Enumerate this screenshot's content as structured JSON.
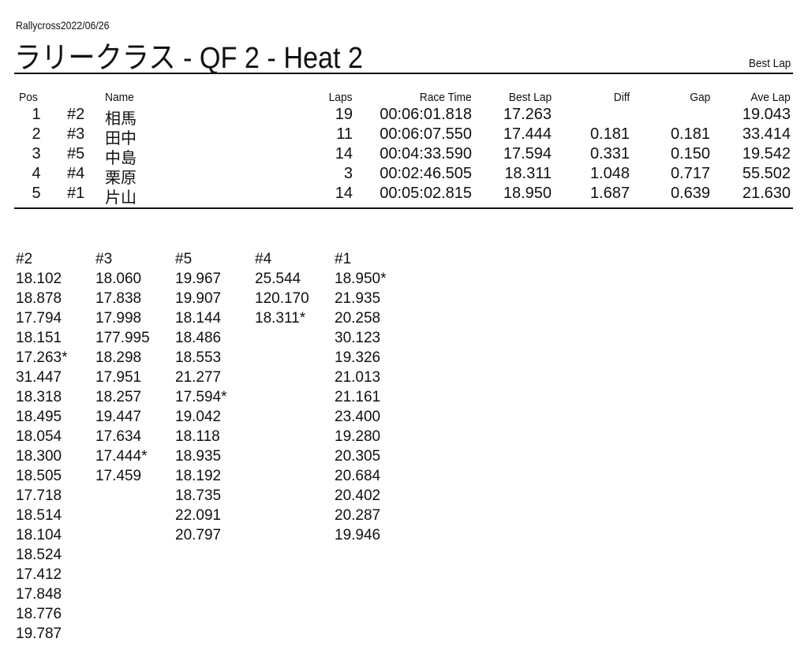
{
  "header": {
    "subtitle": "Rallycross2022/06/26",
    "title": "ラリークラス  -  QF 2  -  Heat 2",
    "sort_mode": "Best Lap"
  },
  "results": {
    "columns": [
      "Pos",
      "Name",
      "Laps",
      "Race Time",
      "Best Lap",
      "Diff",
      "Gap",
      "Ave Lap"
    ],
    "rows": [
      {
        "pos": "1",
        "num": "#2",
        "name": "相馬",
        "laps": "19",
        "race_time": "00:06:01.818",
        "best_lap": "17.263",
        "diff": "",
        "gap": "",
        "ave_lap": "19.043"
      },
      {
        "pos": "2",
        "num": "#3",
        "name": "田中",
        "laps": "11",
        "race_time": "00:06:07.550",
        "best_lap": "17.444",
        "diff": "0.181",
        "gap": "0.181",
        "ave_lap": "33.414"
      },
      {
        "pos": "3",
        "num": "#5",
        "name": "中島",
        "laps": "14",
        "race_time": "00:04:33.590",
        "best_lap": "17.594",
        "diff": "0.331",
        "gap": "0.150",
        "ave_lap": "19.542"
      },
      {
        "pos": "4",
        "num": "#4",
        "name": "栗原",
        "laps": "3",
        "race_time": "00:02:46.505",
        "best_lap": "18.311",
        "diff": "1.048",
        "gap": "0.717",
        "ave_lap": "55.502"
      },
      {
        "pos": "5",
        "num": "#1",
        "name": "片山",
        "laps": "14",
        "race_time": "00:05:02.815",
        "best_lap": "18.950",
        "diff": "1.687",
        "gap": "0.639",
        "ave_lap": "21.630"
      }
    ]
  },
  "lap_times": [
    {
      "car": "#2",
      "laps": [
        "18.102",
        "18.878",
        "17.794",
        "18.151",
        "17.263*",
        "31.447",
        "18.318",
        "18.495",
        "18.054",
        "18.300",
        "18.505",
        "17.718",
        "18.514",
        "18.104",
        "18.524",
        "17.412",
        "17.848",
        "18.776",
        "19.787"
      ]
    },
    {
      "car": "#3",
      "laps": [
        "18.060",
        "17.838",
        "17.998",
        "177.995",
        "18.298",
        "17.951",
        "18.257",
        "19.447",
        "17.634",
        "17.444*",
        "17.459"
      ]
    },
    {
      "car": "#5",
      "laps": [
        "19.967",
        "19.907",
        "18.144",
        "18.486",
        "18.553",
        "21.277",
        "17.594*",
        "19.042",
        "18.118",
        "18.935",
        "18.192",
        "18.735",
        "22.091",
        "20.797"
      ]
    },
    {
      "car": "#4",
      "laps": [
        "25.544",
        "120.170",
        "18.311*"
      ]
    },
    {
      "car": "#1",
      "laps": [
        "18.950*",
        "21.935",
        "20.258",
        "30.123",
        "19.326",
        "21.013",
        "21.161",
        "23.400",
        "19.280",
        "20.305",
        "20.684",
        "20.402",
        "20.287",
        "19.946"
      ]
    }
  ]
}
